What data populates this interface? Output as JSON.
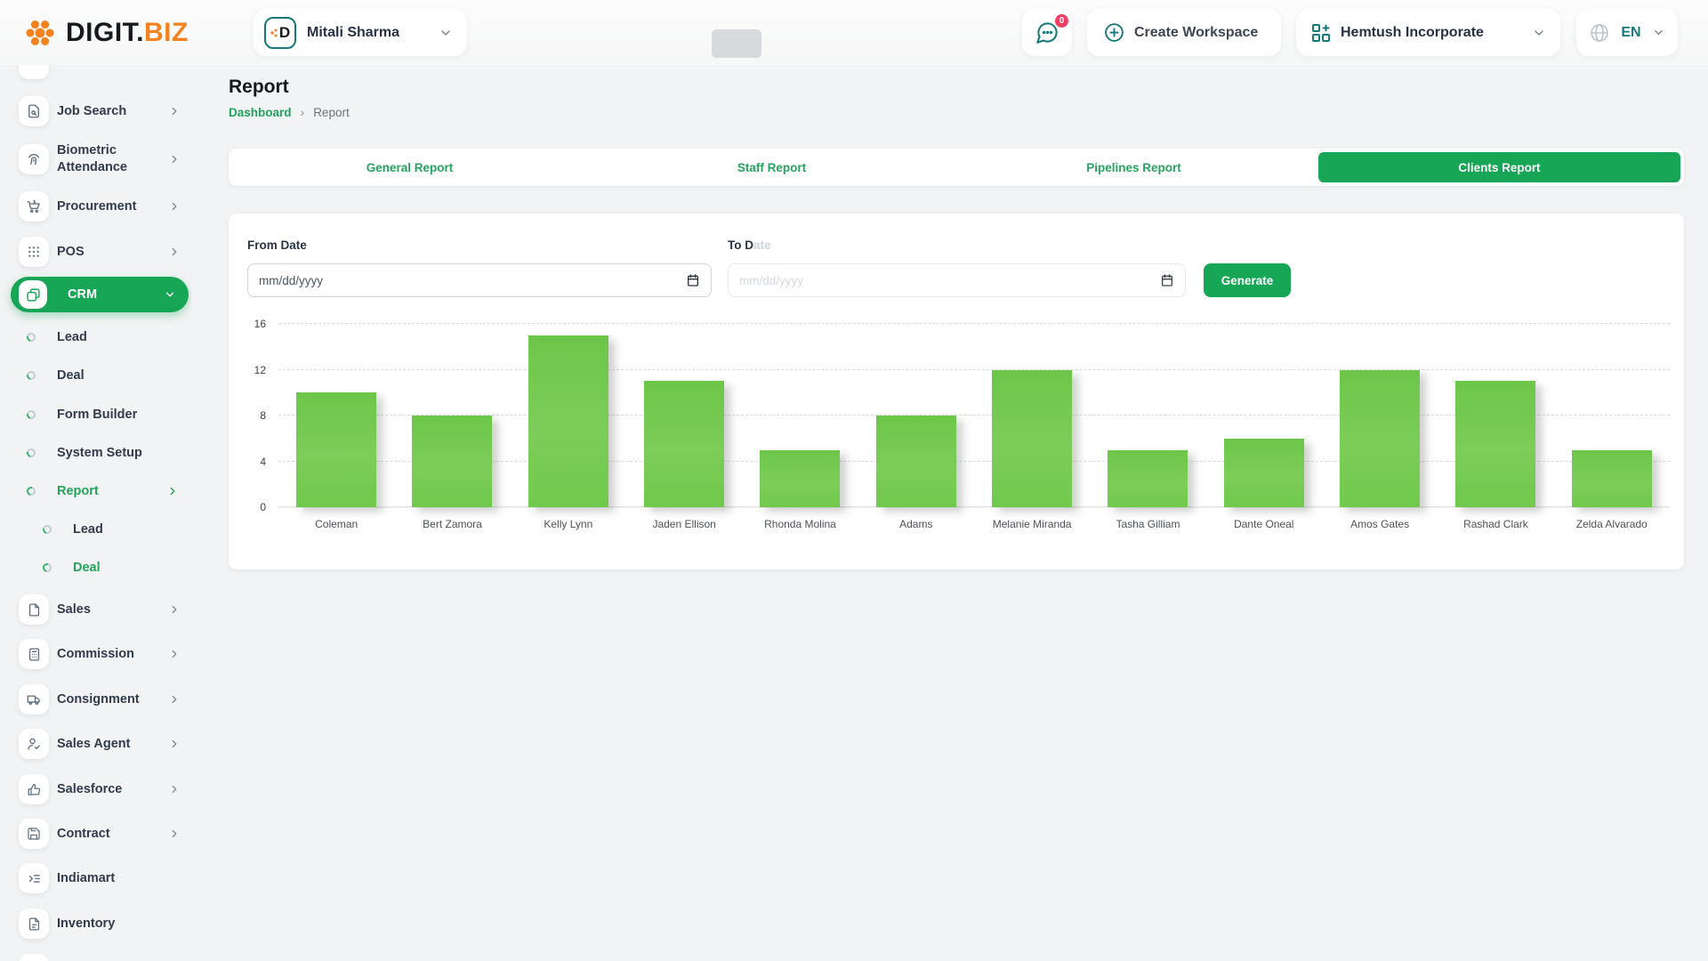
{
  "header": {
    "logo": {
      "digit": "DIGIT.",
      "biz": "BIZ"
    },
    "user": {
      "name": "Mitali Sharma",
      "avatar_letter": "D"
    },
    "chat_badge": "0",
    "create_workspace_label": "Create Workspace",
    "workspace_name": "Hemtush Incorporate",
    "language": "EN"
  },
  "sidebar": {
    "top_items": [
      {
        "label": "Job Search"
      },
      {
        "label": "Biometric Attendance"
      },
      {
        "label": "Procurement"
      },
      {
        "label": "POS"
      }
    ],
    "crm": {
      "label": "CRM"
    },
    "crm_children": [
      {
        "label": "Lead"
      },
      {
        "label": "Deal"
      },
      {
        "label": "Form Builder"
      },
      {
        "label": "System Setup"
      },
      {
        "label": "Report"
      }
    ],
    "report_children": [
      {
        "label": "Lead"
      },
      {
        "label": "Deal"
      }
    ],
    "bottom_items": [
      {
        "label": "Sales"
      },
      {
        "label": "Commission"
      },
      {
        "label": "Consignment"
      },
      {
        "label": "Sales Agent"
      },
      {
        "label": "Salesforce"
      },
      {
        "label": "Contract"
      },
      {
        "label": "Indiamart"
      },
      {
        "label": "Inventory"
      }
    ]
  },
  "page": {
    "title": "Report",
    "breadcrumb_home": "Dashboard",
    "breadcrumb_sep": "›",
    "breadcrumb_current": "Report"
  },
  "tabs": [
    {
      "label": "General Report"
    },
    {
      "label": "Staff Report"
    },
    {
      "label": "Pipelines Report"
    },
    {
      "label": "Clients Report"
    }
  ],
  "filters": {
    "from_label": "From Date",
    "to_label_dark": "To D",
    "to_label_faded": "ate",
    "placeholder": "mm/dd/yyyy",
    "generate_label": "Generate"
  },
  "colors": {
    "accent_green": "#17a556",
    "teal": "#15787d",
    "orange": "#f5821f",
    "bar_green": "#72c84e",
    "badge_pink": "#f23f63"
  },
  "chart_data": {
    "type": "bar",
    "title": "",
    "xlabel": "",
    "ylabel": "",
    "categories": [
      "Coleman",
      "Bert Zamora",
      "Kelly Lynn",
      "Jaden Ellison",
      "Rhonda Molina",
      "Adams",
      "Melanie Miranda",
      "Tasha Gilliam",
      "Dante Oneal",
      "Amos Gates",
      "Rashad Clark",
      "Zelda Alvarado"
    ],
    "values": [
      10,
      8,
      15,
      11,
      5,
      8,
      12,
      5,
      6,
      12,
      11,
      5
    ],
    "ylim": [
      0,
      16
    ],
    "yticks": [
      0,
      4,
      8,
      12,
      16
    ],
    "grid": "horizontal-dashed",
    "legend": "none",
    "bar_color": "#72c84e"
  }
}
